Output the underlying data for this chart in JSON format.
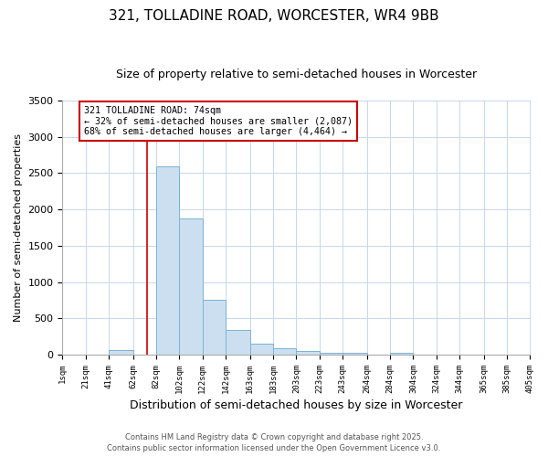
{
  "title1": "321, TOLLADINE ROAD, WORCESTER, WR4 9BB",
  "title2": "Size of property relative to semi-detached houses in Worcester",
  "xlabel": "Distribution of semi-detached houses by size in Worcester",
  "ylabel": "Number of semi-detached properties",
  "annotation_title": "321 TOLLADINE ROAD: 74sqm",
  "annotation_line1": "← 32% of semi-detached houses are smaller (2,087)",
  "annotation_line2": "68% of semi-detached houses are larger (4,464) →",
  "property_size": 74,
  "footer1": "Contains HM Land Registry data © Crown copyright and database right 2025.",
  "footer2": "Contains public sector information licensed under the Open Government Licence v3.0.",
  "bar_edges": [
    1,
    21,
    41,
    62,
    82,
    102,
    122,
    142,
    163,
    183,
    203,
    223,
    243,
    264,
    284,
    304,
    324,
    344,
    365,
    385,
    405
  ],
  "bar_heights": [
    0,
    0,
    65,
    0,
    2600,
    1880,
    750,
    340,
    155,
    90,
    55,
    30,
    20,
    0,
    28,
    0,
    0,
    0,
    0,
    0
  ],
  "bar_color": "#ccdff0",
  "bar_edge_color": "#7ab3d4",
  "vline_color": "#cc0000",
  "vline_x": 74,
  "ylim": [
    0,
    3500
  ],
  "yticks": [
    0,
    500,
    1000,
    1500,
    2000,
    2500,
    3000,
    3500
  ],
  "bg_color": "#ffffff",
  "grid_color": "#c5d8ec",
  "annotation_box_color": "#ffffff",
  "annotation_border_color": "#cc0000",
  "title_fontsize": 11,
  "subtitle_fontsize": 9
}
